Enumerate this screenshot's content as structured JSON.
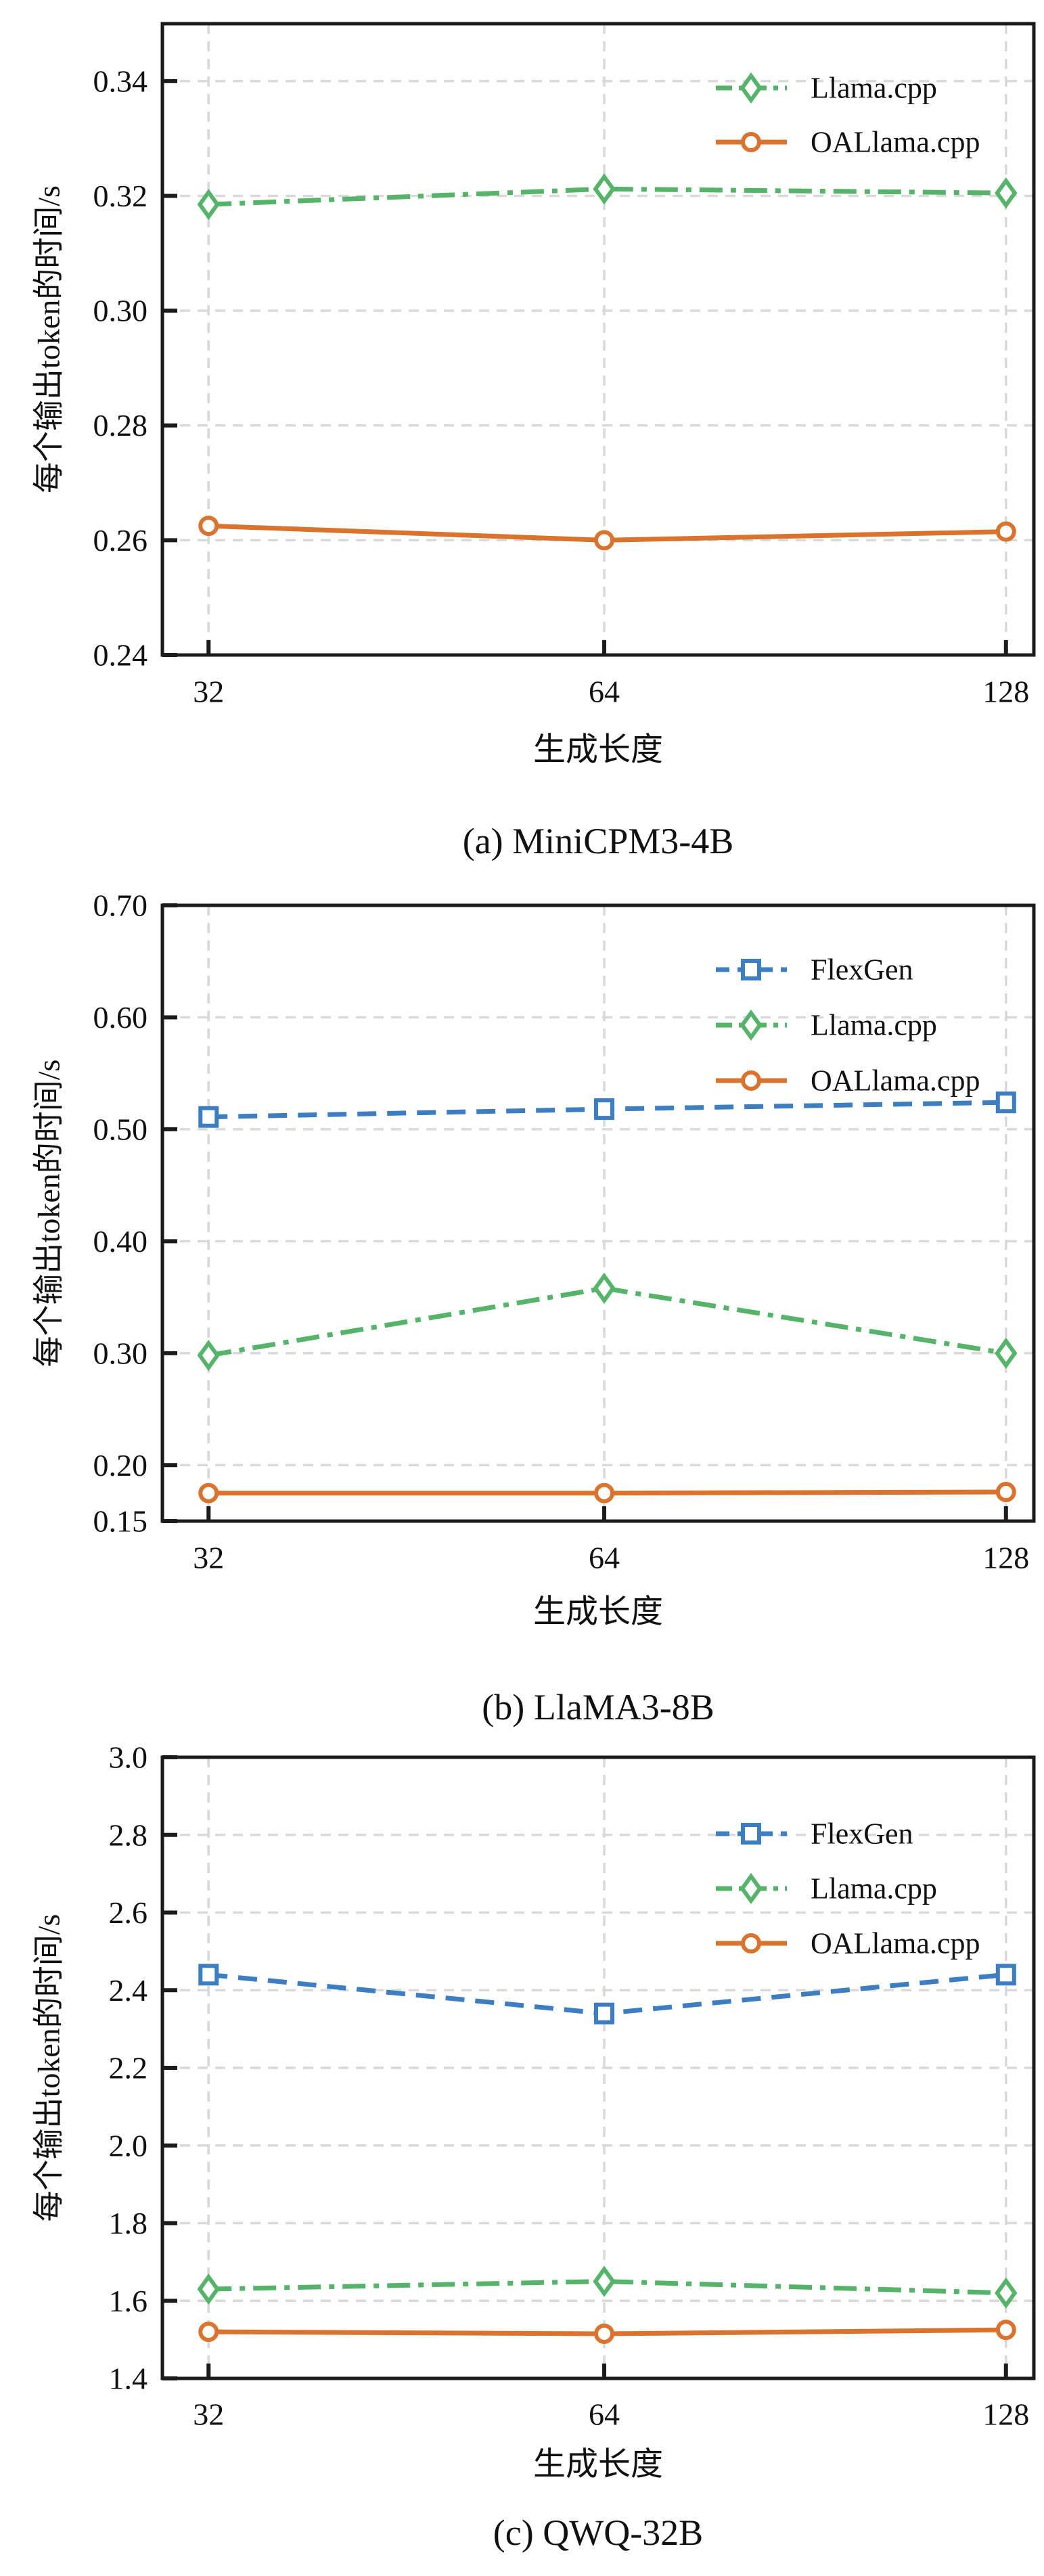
{
  "page": {
    "background": "#ffffff"
  },
  "colors": {
    "flexgen": "#3c7ec1",
    "llama_cpp": "#55b469",
    "oallama_cpp": "#d9732d",
    "grid": "#d9d9d9",
    "axis": "#1c1c1c"
  },
  "chart_data": [
    {
      "type": "line",
      "title": "(a) MiniCPM3-4B",
      "xlabel": "生成长度",
      "ylabel": "每个输出token的时间/s",
      "categories": [
        "32",
        "64",
        "128"
      ],
      "ylim": [
        0.24,
        0.35
      ],
      "yticks": [
        {
          "value": 0.24,
          "label": "0.24"
        },
        {
          "value": 0.26,
          "label": "0.26"
        },
        {
          "value": 0.28,
          "label": "0.28"
        },
        {
          "value": 0.3,
          "label": "0.30"
        },
        {
          "value": 0.32,
          "label": "0.32"
        },
        {
          "value": 0.34,
          "label": "0.34"
        }
      ],
      "grid": true,
      "legend_position": "top-right",
      "series": [
        {
          "name": "Llama.cpp",
          "color": "#55b469",
          "linestyle": "dashdot",
          "marker": "diamond",
          "values": [
            0.3185,
            0.3212,
            0.3205
          ]
        },
        {
          "name": "OALlama.cpp",
          "color": "#d9732d",
          "linestyle": "solid",
          "marker": "circle",
          "values": [
            0.2625,
            0.26,
            0.2615
          ]
        }
      ]
    },
    {
      "type": "line",
      "title": "(b) LlaMA3-8B",
      "xlabel": "生成长度",
      "ylabel": "每个输出token的时间/s",
      "categories": [
        "32",
        "64",
        "128"
      ],
      "ylim": [
        0.15,
        0.7
      ],
      "yticks": [
        {
          "value": 0.15,
          "label": "0.15"
        },
        {
          "value": 0.2,
          "label": "0.20"
        },
        {
          "value": 0.3,
          "label": "0.30"
        },
        {
          "value": 0.4,
          "label": "0.40"
        },
        {
          "value": 0.5,
          "label": "0.50"
        },
        {
          "value": 0.6,
          "label": "0.60"
        },
        {
          "value": 0.7,
          "label": "0.70"
        }
      ],
      "grid": true,
      "legend_position": "top-right",
      "series": [
        {
          "name": "FlexGen",
          "color": "#3c7ec1",
          "linestyle": "dashed",
          "marker": "square",
          "values": [
            0.511,
            0.518,
            0.524
          ]
        },
        {
          "name": "Llama.cpp",
          "color": "#55b469",
          "linestyle": "dashdot",
          "marker": "diamond",
          "values": [
            0.298,
            0.358,
            0.3
          ]
        },
        {
          "name": "OALlama.cpp",
          "color": "#d9732d",
          "linestyle": "solid",
          "marker": "circle",
          "values": [
            0.175,
            0.175,
            0.176
          ]
        }
      ]
    },
    {
      "type": "line",
      "title": "(c) QWQ-32B",
      "xlabel": "生成长度",
      "ylabel": "每个输出token的时间/s",
      "categories": [
        "32",
        "64",
        "128"
      ],
      "ylim": [
        1.4,
        3.0
      ],
      "yticks": [
        {
          "value": 1.4,
          "label": "1.4"
        },
        {
          "value": 1.6,
          "label": "1.6"
        },
        {
          "value": 1.8,
          "label": "1.8"
        },
        {
          "value": 2.0,
          "label": "2.0"
        },
        {
          "value": 2.2,
          "label": "2.2"
        },
        {
          "value": 2.4,
          "label": "2.4"
        },
        {
          "value": 2.6,
          "label": "2.6"
        },
        {
          "value": 2.8,
          "label": "2.8"
        },
        {
          "value": 3.0,
          "label": "3.0"
        }
      ],
      "grid": true,
      "legend_position": "top-right",
      "series": [
        {
          "name": "FlexGen",
          "color": "#3c7ec1",
          "linestyle": "dashed",
          "marker": "square",
          "values": [
            2.44,
            2.34,
            2.44
          ]
        },
        {
          "name": "Llama.cpp",
          "color": "#55b469",
          "linestyle": "dashdot",
          "marker": "diamond",
          "values": [
            1.63,
            1.65,
            1.62
          ]
        },
        {
          "name": "OALlama.cpp",
          "color": "#d9732d",
          "linestyle": "solid",
          "marker": "circle",
          "values": [
            1.52,
            1.515,
            1.525
          ]
        }
      ]
    }
  ]
}
